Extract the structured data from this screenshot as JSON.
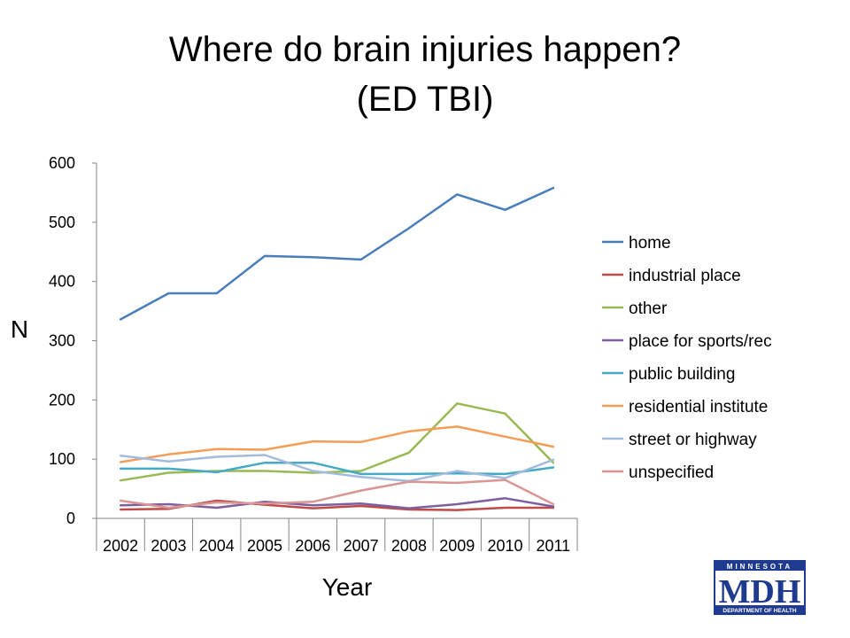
{
  "title_line1": "Where do brain injuries happen?",
  "title_line2": "(ED TBI)",
  "logo": {
    "top_text": "MINNESOTA",
    "main_text": "MDH",
    "bottom_text": "DEPARTMENT OF HEALTH",
    "color": "#1f3b8f"
  },
  "chart_data": {
    "type": "line",
    "title": "Where do brain injuries happen? (ED TBI)",
    "xlabel": "Year",
    "ylabel": "N",
    "ylim": [
      0,
      600
    ],
    "yticks": [
      0,
      100,
      200,
      300,
      400,
      500,
      600
    ],
    "grid": false,
    "legend_position": "right",
    "categories": [
      "2002",
      "2003",
      "2004",
      "2005",
      "2006",
      "2007",
      "2008",
      "2009",
      "2010",
      "2011"
    ],
    "series": [
      {
        "name": "home",
        "color": "#4a7ebb",
        "values": [
          336,
          380,
          380,
          443,
          441,
          437,
          490,
          547,
          521,
          558
        ]
      },
      {
        "name": "industrial place",
        "color": "#be4b48",
        "values": [
          15,
          16,
          30,
          23,
          17,
          21,
          15,
          14,
          18,
          18
        ]
      },
      {
        "name": "other",
        "color": "#98b954",
        "values": [
          64,
          77,
          80,
          80,
          77,
          80,
          111,
          194,
          177,
          94
        ]
      },
      {
        "name": "place for sports/rec",
        "color": "#7d5fa0",
        "values": [
          22,
          24,
          18,
          28,
          22,
          25,
          17,
          24,
          34,
          20
        ]
      },
      {
        "name": "public building",
        "color": "#46aac5",
        "values": [
          84,
          84,
          78,
          94,
          94,
          75,
          75,
          76,
          75,
          86
        ]
      },
      {
        "name": "residential institute",
        "color": "#f59d56",
        "values": [
          95,
          108,
          117,
          116,
          130,
          129,
          147,
          155,
          138,
          121
        ]
      },
      {
        "name": "street or highway",
        "color": "#a3bbdd",
        "values": [
          106,
          96,
          104,
          107,
          80,
          70,
          63,
          80,
          68,
          99
        ]
      },
      {
        "name": "unspecified",
        "color": "#d99694",
        "values": [
          30,
          18,
          27,
          25,
          28,
          47,
          62,
          60,
          65,
          24
        ]
      }
    ]
  }
}
